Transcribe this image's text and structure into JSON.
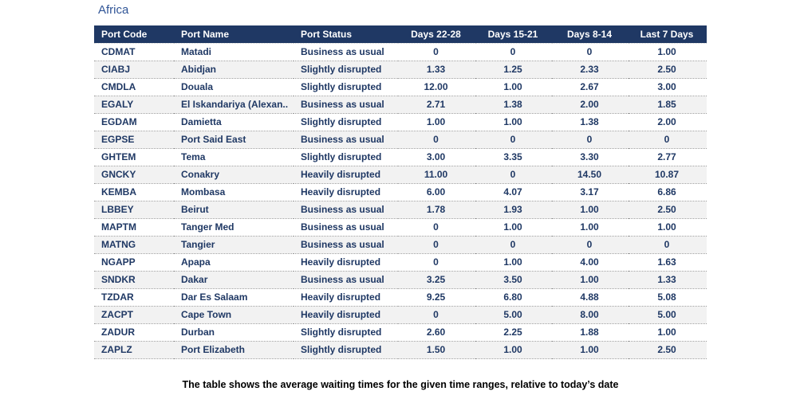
{
  "title": "Africa",
  "caption": "The table shows the average waiting times for the given time ranges, relative to today’s date",
  "colors": {
    "header_bg": "#1F3864",
    "row_text": "#1F3864",
    "alt_row_bg": "#F2F2F2",
    "title_text": "#2F5496"
  },
  "table": {
    "columns": [
      {
        "key": "code",
        "label": "Port Code",
        "align": "left"
      },
      {
        "key": "name",
        "label": "Port Name",
        "align": "left"
      },
      {
        "key": "status",
        "label": "Port Status",
        "align": "left"
      },
      {
        "key": "d22",
        "label": "Days 22-28",
        "align": "center"
      },
      {
        "key": "d15",
        "label": "Days 15-21",
        "align": "center"
      },
      {
        "key": "d8",
        "label": "Days 8-14",
        "align": "center"
      },
      {
        "key": "d7",
        "label": "Last 7 Days",
        "align": "center"
      }
    ],
    "rows": [
      [
        "CDMAT",
        "Matadi",
        "Business as usual",
        "0",
        "0",
        "0",
        "1.00"
      ],
      [
        "CIABJ",
        "Abidjan",
        "Slightly disrupted",
        "1.33",
        "1.25",
        "2.33",
        "2.50"
      ],
      [
        "CMDLA",
        "Douala",
        "Slightly disrupted",
        "12.00",
        "1.00",
        "2.67",
        "3.00"
      ],
      [
        "EGALY",
        "El Iskandariya (Alexan..",
        "Business as usual",
        "2.71",
        "1.38",
        "2.00",
        "1.85"
      ],
      [
        "EGDAM",
        "Damietta",
        "Slightly disrupted",
        "1.00",
        "1.00",
        "1.38",
        "2.00"
      ],
      [
        "EGPSE",
        "Port Said East",
        "Business as usual",
        "0",
        "0",
        "0",
        "0"
      ],
      [
        "GHTEM",
        "Tema",
        "Slightly disrupted",
        "3.00",
        "3.35",
        "3.30",
        "2.77"
      ],
      [
        "GNCKY",
        "Conakry",
        "Heavily disrupted",
        "11.00",
        "0",
        "14.50",
        "10.87"
      ],
      [
        "KEMBA",
        "Mombasa",
        "Heavily disrupted",
        "6.00",
        "4.07",
        "3.17",
        "6.86"
      ],
      [
        "LBBEY",
        "Beirut",
        "Business as usual",
        "1.78",
        "1.93",
        "1.00",
        "2.50"
      ],
      [
        "MAPTM",
        "Tanger Med",
        "Business as usual",
        "0",
        "1.00",
        "1.00",
        "1.00"
      ],
      [
        "MATNG",
        "Tangier",
        "Business as usual",
        "0",
        "0",
        "0",
        "0"
      ],
      [
        "NGAPP",
        "Apapa",
        "Heavily disrupted",
        "0",
        "1.00",
        "4.00",
        "1.63"
      ],
      [
        "SNDKR",
        "Dakar",
        "Business as usual",
        "3.25",
        "3.50",
        "1.00",
        "1.33"
      ],
      [
        "TZDAR",
        "Dar Es Salaam",
        "Heavily disrupted",
        "9.25",
        "6.80",
        "4.88",
        "5.08"
      ],
      [
        "ZACPT",
        "Cape Town",
        "Heavily disrupted",
        "0",
        "5.00",
        "8.00",
        "5.00"
      ],
      [
        "ZADUR",
        "Durban",
        "Slightly disrupted",
        "2.60",
        "2.25",
        "1.88",
        "1.00"
      ],
      [
        "ZAPLZ",
        "Port Elizabeth",
        "Slightly disrupted",
        "1.50",
        "1.00",
        "1.00",
        "2.50"
      ]
    ]
  },
  "chart_data": {
    "type": "table",
    "title": "Africa",
    "columns": [
      "Port Code",
      "Port Name",
      "Port Status",
      "Days 22-28",
      "Days 15-21",
      "Days 8-14",
      "Last 7 Days"
    ],
    "rows": [
      [
        "CDMAT",
        "Matadi",
        "Business as usual",
        0,
        0,
        0,
        1.0
      ],
      [
        "CIABJ",
        "Abidjan",
        "Slightly disrupted",
        1.33,
        1.25,
        2.33,
        2.5
      ],
      [
        "CMDLA",
        "Douala",
        "Slightly disrupted",
        12.0,
        1.0,
        2.67,
        3.0
      ],
      [
        "EGALY",
        "El Iskandariya (Alexan..",
        "Business as usual",
        2.71,
        1.38,
        2.0,
        1.85
      ],
      [
        "EGDAM",
        "Damietta",
        "Slightly disrupted",
        1.0,
        1.0,
        1.38,
        2.0
      ],
      [
        "EGPSE",
        "Port Said East",
        "Business as usual",
        0,
        0,
        0,
        0
      ],
      [
        "GHTEM",
        "Tema",
        "Slightly disrupted",
        3.0,
        3.35,
        3.3,
        2.77
      ],
      [
        "GNCKY",
        "Conakry",
        "Heavily disrupted",
        11.0,
        0,
        14.5,
        10.87
      ],
      [
        "KEMBA",
        "Mombasa",
        "Heavily disrupted",
        6.0,
        4.07,
        3.17,
        6.86
      ],
      [
        "LBBEY",
        "Beirut",
        "Business as usual",
        1.78,
        1.93,
        1.0,
        2.5
      ],
      [
        "MAPTM",
        "Tanger Med",
        "Business as usual",
        0,
        1.0,
        1.0,
        1.0
      ],
      [
        "MATNG",
        "Tangier",
        "Business as usual",
        0,
        0,
        0,
        0
      ],
      [
        "NGAPP",
        "Apapa",
        "Heavily disrupted",
        0,
        1.0,
        4.0,
        1.63
      ],
      [
        "SNDKR",
        "Dakar",
        "Business as usual",
        3.25,
        3.5,
        1.0,
        1.33
      ],
      [
        "TZDAR",
        "Dar Es Salaam",
        "Heavily disrupted",
        9.25,
        6.8,
        4.88,
        5.08
      ],
      [
        "ZACPT",
        "Cape Town",
        "Heavily disrupted",
        0,
        5.0,
        8.0,
        5.0
      ],
      [
        "ZADUR",
        "Durban",
        "Slightly disrupted",
        2.6,
        2.25,
        1.88,
        1.0
      ],
      [
        "ZAPLZ",
        "Port Elizabeth",
        "Slightly disrupted",
        1.5,
        1.0,
        1.0,
        2.5
      ]
    ],
    "caption": "The table shows the average waiting times for the given time ranges, relative to today’s date"
  }
}
